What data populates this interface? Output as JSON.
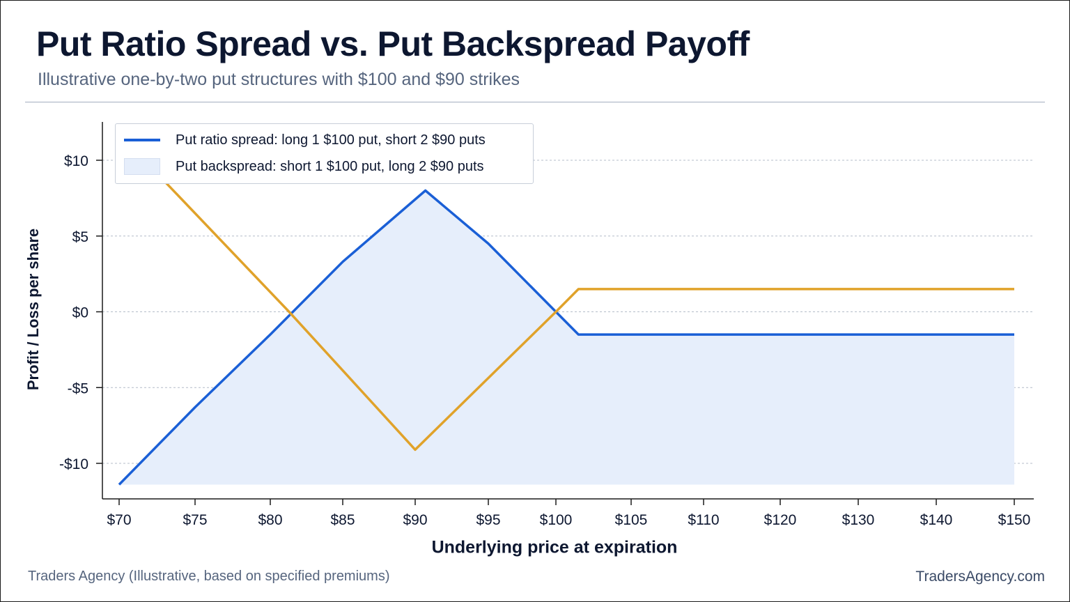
{
  "header": {
    "title": "Put Ratio Spread vs. Put Backspread Payoff",
    "subtitle": "Illustrative one-by-two put structures with $100 and $90 strikes"
  },
  "footer": {
    "source": "Traders Agency (Illustrative, based on specified premiums)",
    "site": "TradersAgency.com"
  },
  "chart_data": {
    "type": "line",
    "title": "Put Ratio Spread vs. Put Backspread Payoff",
    "subtitle": "Illustrative one-by-two put structures with $100 and $90 strikes",
    "xlabel": "Underlying price at expiration",
    "ylabel": "Profit / Loss per share",
    "x_ticks": [
      "$70",
      "$75",
      "$80",
      "$85",
      "$90",
      "$95",
      "$100",
      "$105",
      "$110",
      "$120",
      "$130",
      "$140",
      "$150"
    ],
    "y_ticks": [
      {
        "value": 10,
        "label": "$10"
      },
      {
        "value": 5,
        "label": "$5"
      },
      {
        "value": 0,
        "label": "$0"
      },
      {
        "value": -5,
        "label": "-$5"
      },
      {
        "value": -10,
        "label": "-$10"
      }
    ],
    "ylim": [
      -12.5,
      12.5
    ],
    "grid": "horizontal dashed",
    "legend_position": "top-left",
    "series": [
      {
        "name": "Put ratio spread: long 1 $100 put, short 2 $90 puts",
        "style": "line with shaded area",
        "color": "#1a5fd6",
        "fill_color": "#e6eefb",
        "points": [
          {
            "x": 70,
            "y": -11.4
          },
          {
            "x": 75,
            "y": -6.3
          },
          {
            "x": 80,
            "y": -1.5
          },
          {
            "x": 85,
            "y": 3.3
          },
          {
            "x": 90.7,
            "y": 8.0
          },
          {
            "x": 95,
            "y": 4.5
          },
          {
            "x": 100,
            "y": 0.0
          },
          {
            "x": 101.5,
            "y": -1.5
          },
          {
            "x": 150,
            "y": -1.5
          }
        ]
      },
      {
        "name": "Put backspread: short 1 $100 put, long 2 $90 puts",
        "style": "line",
        "color": "#e0a22a",
        "points": [
          {
            "x": 73,
            "y": 8.6
          },
          {
            "x": 81.3,
            "y": 0.0
          },
          {
            "x": 90,
            "y": -9.1
          },
          {
            "x": 100,
            "y": 0.0
          },
          {
            "x": 101.5,
            "y": 1.5
          },
          {
            "x": 150,
            "y": 1.5
          }
        ]
      }
    ]
  }
}
